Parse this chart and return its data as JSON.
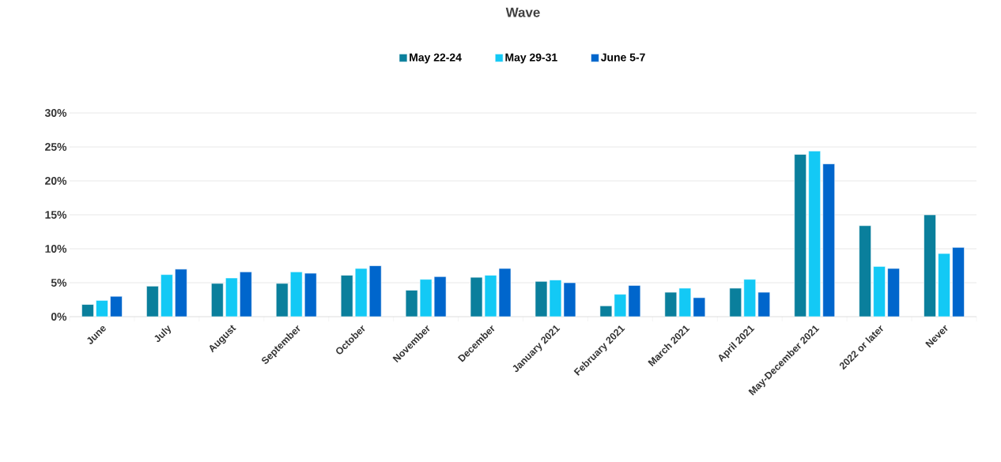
{
  "chart_data": {
    "type": "bar",
    "legend_title": "Wave",
    "categories": [
      "June",
      "July",
      "August",
      "September",
      "October",
      "November",
      "December",
      "January 2021",
      "February 2021",
      "March 2021",
      "April 2021",
      "May-December 2021",
      "2022 or later",
      "Never"
    ],
    "series": [
      {
        "name": "May 22-24",
        "color": "#0a7f9c",
        "values": [
          1.8,
          4.5,
          4.9,
          4.9,
          6.1,
          3.9,
          5.8,
          5.2,
          1.6,
          3.6,
          4.2,
          23.9,
          13.4,
          15.0
        ]
      },
      {
        "name": "May 29-31",
        "color": "#13c9f5",
        "values": [
          2.4,
          6.2,
          5.7,
          6.6,
          7.1,
          5.5,
          6.1,
          5.4,
          3.3,
          4.2,
          5.5,
          24.4,
          7.4,
          9.3
        ]
      },
      {
        "name": "June 5-7",
        "color": "#0066cc",
        "values": [
          3.0,
          7.0,
          6.6,
          6.4,
          7.5,
          5.9,
          7.1,
          5.0,
          4.6,
          2.8,
          3.6,
          22.5,
          7.1,
          10.2
        ]
      }
    ],
    "ylim": [
      0,
      30
    ],
    "yticks": [
      {
        "value": 0,
        "label": "0%"
      },
      {
        "value": 5,
        "label": "5%"
      },
      {
        "value": 10,
        "label": "10%"
      },
      {
        "value": 15,
        "label": "15%"
      },
      {
        "value": 20,
        "label": "20%"
      },
      {
        "value": 25,
        "label": "25%"
      },
      {
        "value": 30,
        "label": "30%"
      }
    ],
    "grid": "y",
    "legend": "top"
  }
}
